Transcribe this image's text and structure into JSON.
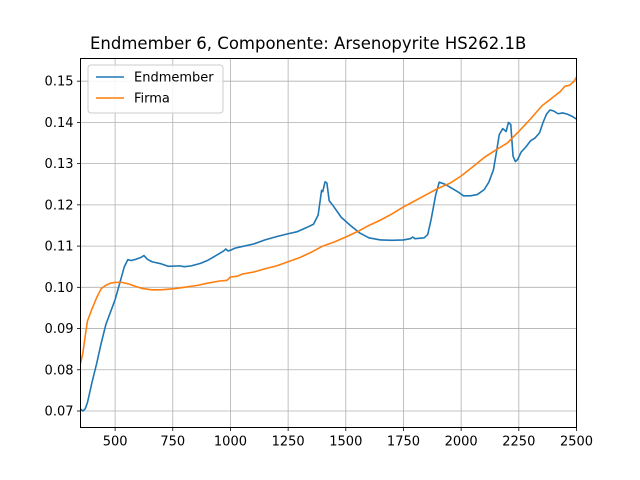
{
  "chart_data": {
    "type": "line",
    "title": "Endmember 6, Componente: Arsenopyrite HS262.1B",
    "xlabel": "",
    "ylabel": "",
    "xlim": [
      350,
      2500
    ],
    "ylim": [
      0.066,
      0.1555
    ],
    "xticks": [
      500,
      750,
      1000,
      1250,
      1500,
      1750,
      2000,
      2250,
      2500
    ],
    "yticks": [
      0.07,
      0.08,
      0.09,
      0.1,
      0.11,
      0.12,
      0.13,
      0.14,
      0.15
    ],
    "grid": true,
    "legend_position": "top-left",
    "series": [
      {
        "name": "Endmember",
        "color": "#1f77b4",
        "points": [
          [
            350,
            0.0705
          ],
          [
            360,
            0.07
          ],
          [
            370,
            0.0705
          ],
          [
            380,
            0.072
          ],
          [
            400,
            0.077
          ],
          [
            420,
            0.0815
          ],
          [
            440,
            0.0865
          ],
          [
            460,
            0.091
          ],
          [
            480,
            0.094
          ],
          [
            500,
            0.097
          ],
          [
            520,
            0.101
          ],
          [
            540,
            0.105
          ],
          [
            555,
            0.1067
          ],
          [
            570,
            0.1065
          ],
          [
            590,
            0.1068
          ],
          [
            610,
            0.1072
          ],
          [
            625,
            0.1077
          ],
          [
            640,
            0.1068
          ],
          [
            660,
            0.1062
          ],
          [
            700,
            0.1057
          ],
          [
            730,
            0.1051
          ],
          [
            780,
            0.1052
          ],
          [
            800,
            0.105
          ],
          [
            830,
            0.1052
          ],
          [
            870,
            0.1058
          ],
          [
            900,
            0.1065
          ],
          [
            940,
            0.1078
          ],
          [
            970,
            0.1088
          ],
          [
            980,
            0.1093
          ],
          [
            990,
            0.1088
          ],
          [
            1000,
            0.109
          ],
          [
            1020,
            0.1095
          ],
          [
            1060,
            0.11
          ],
          [
            1100,
            0.1105
          ],
          [
            1150,
            0.1115
          ],
          [
            1200,
            0.1123
          ],
          [
            1250,
            0.113
          ],
          [
            1290,
            0.1135
          ],
          [
            1330,
            0.1145
          ],
          [
            1360,
            0.1153
          ],
          [
            1380,
            0.1175
          ],
          [
            1395,
            0.1235
          ],
          [
            1400,
            0.1232
          ],
          [
            1410,
            0.1256
          ],
          [
            1418,
            0.1253
          ],
          [
            1428,
            0.121
          ],
          [
            1445,
            0.1198
          ],
          [
            1480,
            0.117
          ],
          [
            1520,
            0.115
          ],
          [
            1560,
            0.1132
          ],
          [
            1600,
            0.112
          ],
          [
            1650,
            0.1115
          ],
          [
            1700,
            0.1114
          ],
          [
            1750,
            0.1115
          ],
          [
            1780,
            0.1118
          ],
          [
            1790,
            0.1122
          ],
          [
            1800,
            0.1118
          ],
          [
            1840,
            0.112
          ],
          [
            1855,
            0.1128
          ],
          [
            1870,
            0.1165
          ],
          [
            1890,
            0.1225
          ],
          [
            1905,
            0.1255
          ],
          [
            1930,
            0.125
          ],
          [
            1960,
            0.124
          ],
          [
            1990,
            0.123
          ],
          [
            2010,
            0.1222
          ],
          [
            2040,
            0.1222
          ],
          [
            2070,
            0.1225
          ],
          [
            2100,
            0.1237
          ],
          [
            2120,
            0.1255
          ],
          [
            2140,
            0.1285
          ],
          [
            2155,
            0.1335
          ],
          [
            2165,
            0.137
          ],
          [
            2180,
            0.1385
          ],
          [
            2195,
            0.1378
          ],
          [
            2205,
            0.14
          ],
          [
            2215,
            0.1395
          ],
          [
            2225,
            0.1318
          ],
          [
            2235,
            0.1305
          ],
          [
            2245,
            0.131
          ],
          [
            2260,
            0.1328
          ],
          [
            2280,
            0.134
          ],
          [
            2300,
            0.1355
          ],
          [
            2320,
            0.1362
          ],
          [
            2340,
            0.1375
          ],
          [
            2355,
            0.14
          ],
          [
            2370,
            0.142
          ],
          [
            2385,
            0.143
          ],
          [
            2400,
            0.1428
          ],
          [
            2420,
            0.1421
          ],
          [
            2440,
            0.1423
          ],
          [
            2460,
            0.142
          ],
          [
            2480,
            0.1415
          ],
          [
            2500,
            0.1408
          ]
        ]
      },
      {
        "name": "Firma",
        "color": "#ff7f0e",
        "points": [
          [
            350,
            0.0815
          ],
          [
            360,
            0.084
          ],
          [
            370,
            0.088
          ],
          [
            380,
            0.0918
          ],
          [
            400,
            0.0948
          ],
          [
            420,
            0.0975
          ],
          [
            440,
            0.0997
          ],
          [
            460,
            0.1005
          ],
          [
            480,
            0.101
          ],
          [
            500,
            0.1012
          ],
          [
            530,
            0.1012
          ],
          [
            560,
            0.1008
          ],
          [
            590,
            0.1002
          ],
          [
            620,
            0.0997
          ],
          [
            660,
            0.0994
          ],
          [
            700,
            0.0994
          ],
          [
            760,
            0.0997
          ],
          [
            800,
            0.1
          ],
          [
            860,
            0.1005
          ],
          [
            900,
            0.101
          ],
          [
            950,
            0.1015
          ],
          [
            985,
            0.1017
          ],
          [
            1000,
            0.1025
          ],
          [
            1030,
            0.1027
          ],
          [
            1050,
            0.1032
          ],
          [
            1100,
            0.1037
          ],
          [
            1150,
            0.1045
          ],
          [
            1200,
            0.1052
          ],
          [
            1250,
            0.1062
          ],
          [
            1300,
            0.1072
          ],
          [
            1350,
            0.1085
          ],
          [
            1400,
            0.11
          ],
          [
            1450,
            0.111
          ],
          [
            1500,
            0.1122
          ],
          [
            1550,
            0.1135
          ],
          [
            1600,
            0.115
          ],
          [
            1650,
            0.1163
          ],
          [
            1700,
            0.1178
          ],
          [
            1750,
            0.1195
          ],
          [
            1800,
            0.121
          ],
          [
            1850,
            0.1225
          ],
          [
            1900,
            0.124
          ],
          [
            1950,
            0.1252
          ],
          [
            2000,
            0.127
          ],
          [
            2050,
            0.1292
          ],
          [
            2100,
            0.1315
          ],
          [
            2150,
            0.1333
          ],
          [
            2200,
            0.135
          ],
          [
            2250,
            0.1378
          ],
          [
            2300,
            0.1408
          ],
          [
            2350,
            0.144
          ],
          [
            2400,
            0.1462
          ],
          [
            2430,
            0.1475
          ],
          [
            2450,
            0.1488
          ],
          [
            2470,
            0.149
          ],
          [
            2490,
            0.15
          ],
          [
            2500,
            0.151
          ]
        ]
      }
    ]
  }
}
